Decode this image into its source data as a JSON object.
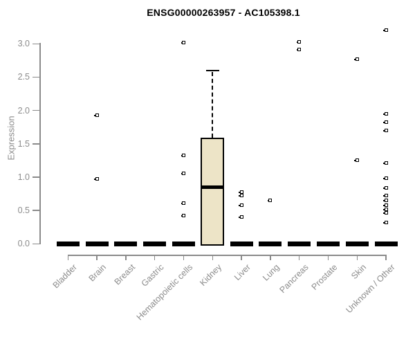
{
  "title": "ENSG00000263957 - AC105398.1",
  "colors": {
    "box_fill": "#EDE4C7",
    "box_border": "#000000",
    "axis": "#8a8a8a",
    "axis_text": "#8c8c8c",
    "title_text": "#000000",
    "background": "#ffffff"
  },
  "chart_data": {
    "type": "boxplot",
    "title": "ENSG00000263957 - AC105398.1",
    "xlabel": "",
    "ylabel": "Expression",
    "ylim": [
      0.0,
      3.25
    ],
    "yticks": [
      "0.0",
      "0.5",
      "1.0",
      "1.5",
      "2.0",
      "2.5",
      "3.0"
    ],
    "grid": false,
    "legend": "none",
    "categories": [
      "Bladder",
      "Brain",
      "Breast",
      "Gastric",
      "Hematopoietic cells",
      "Kidney",
      "Liver",
      "Lung",
      "Pancreas",
      "Prostate",
      "Skin",
      "Unknown / Other"
    ],
    "series": [
      {
        "category": "Bladder",
        "min": 0,
        "q1": 0,
        "median": 0,
        "q3": 0,
        "max": 0,
        "outliers": []
      },
      {
        "category": "Brain",
        "min": 0,
        "q1": 0,
        "median": 0,
        "q3": 0,
        "max": 0,
        "outliers": [
          1.93,
          0.97
        ]
      },
      {
        "category": "Breast",
        "min": 0,
        "q1": 0,
        "median": 0,
        "q3": 0,
        "max": 0,
        "outliers": []
      },
      {
        "category": "Gastric",
        "min": 0,
        "q1": 0,
        "median": 0,
        "q3": 0,
        "max": 0,
        "outliers": []
      },
      {
        "category": "Hematopoietic cells",
        "min": 0,
        "q1": 0,
        "median": 0,
        "q3": 0,
        "max": 0,
        "outliers": [
          3.02,
          1.33,
          1.06,
          0.61,
          0.42
        ]
      },
      {
        "category": "Kidney",
        "min": 0,
        "q1": 0,
        "median": 0.85,
        "q3": 1.59,
        "max": 2.6,
        "outliers": []
      },
      {
        "category": "Liver",
        "min": 0,
        "q1": 0,
        "median": 0,
        "q3": 0,
        "max": 0,
        "outliers": [
          0.78,
          0.72,
          0.58,
          0.4
        ]
      },
      {
        "category": "Lung",
        "min": 0,
        "q1": 0,
        "median": 0,
        "q3": 0,
        "max": 0,
        "outliers": [
          0.65
        ]
      },
      {
        "category": "Pancreas",
        "min": 0,
        "q1": 0,
        "median": 0,
        "q3": 0,
        "max": 0,
        "outliers": [
          3.03,
          2.91
        ]
      },
      {
        "category": "Prostate",
        "min": 0,
        "q1": 0,
        "median": 0,
        "q3": 0,
        "max": 0,
        "outliers": []
      },
      {
        "category": "Skin",
        "min": 0,
        "q1": 0,
        "median": 0,
        "q3": 0,
        "max": 0,
        "outliers": [
          2.77,
          1.25
        ]
      },
      {
        "category": "Unknown / Other",
        "min": 0,
        "q1": 0,
        "median": 0,
        "q3": 0,
        "max": 0,
        "outliers": [
          3.21,
          1.95,
          1.82,
          1.7,
          1.21,
          0.98,
          0.84,
          0.72,
          0.65,
          0.58,
          0.52,
          0.46,
          0.32
        ]
      }
    ]
  }
}
